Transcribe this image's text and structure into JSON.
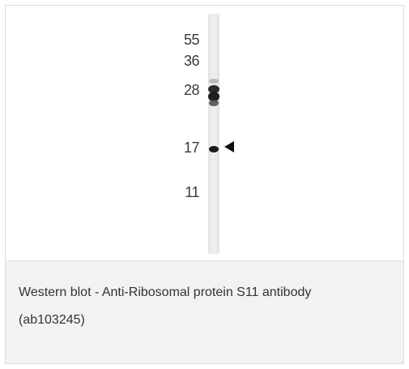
{
  "figure": {
    "markers": [
      "55",
      "36",
      "28",
      "17",
      "11"
    ],
    "caption_line1": "Western blot - Anti-Ribosomal protein S11 antibody",
    "caption_line2": "(ab103245)"
  },
  "colors": {
    "band": "#222222",
    "lane": "#e8e8e8",
    "caption_bg": "#f2f2f2",
    "arrowhead": "#111111"
  },
  "icons": {
    "arrowhead": "left-pointing-triangle-icon"
  }
}
